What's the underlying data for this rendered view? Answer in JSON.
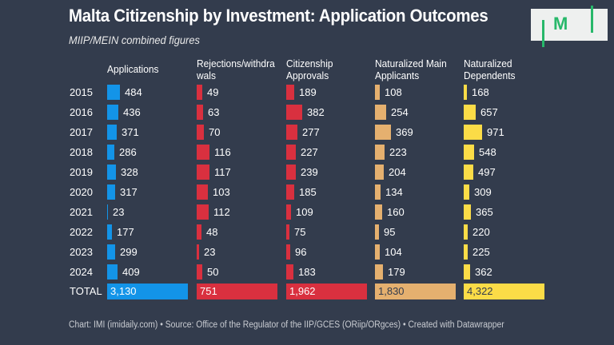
{
  "title": "Malta Citizenship by Investment: Application Outcomes",
  "subtitle": "MIIP/MEIN combined figures",
  "logo": {
    "text": "M",
    "color": "#27b86a"
  },
  "footer": "Chart: IMI (imidaily.com) • Source: Office of the Regulator of the IIP/GCES (ORiip/ORgces) • Created with Datawrapper",
  "chart_data": {
    "type": "table",
    "title": "Malta Citizenship by Investment: Application Outcomes",
    "subtitle": "MIIP/MEIN combined figures",
    "categories": [
      "2015",
      "2016",
      "2017",
      "2018",
      "2019",
      "2020",
      "2021",
      "2022",
      "2023",
      "2024"
    ],
    "total_label": "TOTAL",
    "series": [
      {
        "name": "Applications",
        "color": "#1394e8",
        "values": [
          484,
          436,
          371,
          286,
          328,
          317,
          23,
          177,
          299,
          409
        ],
        "total": 3130,
        "total_label": "3,130"
      },
      {
        "name": "Rejections/withdrawals",
        "header_lines": [
          "Rejections/withdra",
          "wals"
        ],
        "color": "#d9303f",
        "values": [
          49,
          63,
          70,
          116,
          117,
          103,
          112,
          48,
          23,
          50
        ],
        "total": 751,
        "total_label": "751"
      },
      {
        "name": "Citizenship Approvals",
        "header_lines": [
          "Citizenship",
          "Approvals"
        ],
        "color": "#d9303f",
        "values": [
          189,
          382,
          277,
          227,
          239,
          185,
          109,
          75,
          96,
          183
        ],
        "total": 1962,
        "total_label": "1,962"
      },
      {
        "name": "Naturalized Main Applicants",
        "header_lines": [
          "Naturalized Main",
          "Applicants"
        ],
        "color": "#e5b06f",
        "values": [
          108,
          254,
          369,
          223,
          204,
          134,
          160,
          95,
          104,
          179
        ],
        "total": 1830,
        "total_label": "1,830"
      },
      {
        "name": "Naturalized Dependents",
        "header_lines": [
          "Naturalized",
          "Dependents"
        ],
        "color": "#fbdc47",
        "values": [
          168,
          657,
          971,
          548,
          497,
          309,
          365,
          220,
          225,
          362
        ],
        "total": 4322,
        "total_label": "4,322"
      }
    ]
  }
}
